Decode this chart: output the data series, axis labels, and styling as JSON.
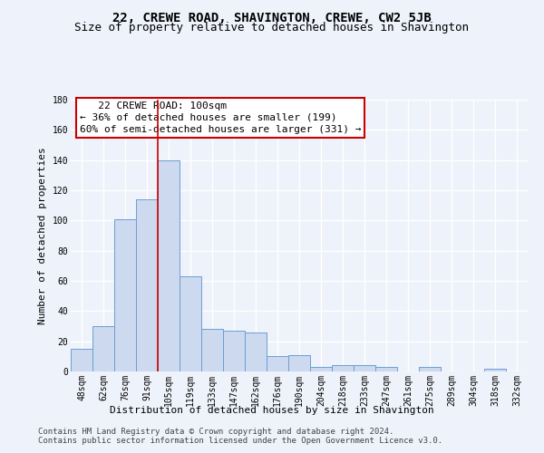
{
  "title": "22, CREWE ROAD, SHAVINGTON, CREWE, CW2 5JB",
  "subtitle": "Size of property relative to detached houses in Shavington",
  "xlabel": "Distribution of detached houses by size in Shavington",
  "ylabel": "Number of detached properties",
  "bar_color": "#ccd9ee",
  "bar_edge_color": "#6b9fd4",
  "categories": [
    "48sqm",
    "62sqm",
    "76sqm",
    "91sqm",
    "105sqm",
    "119sqm",
    "133sqm",
    "147sqm",
    "162sqm",
    "176sqm",
    "190sqm",
    "204sqm",
    "218sqm",
    "233sqm",
    "247sqm",
    "261sqm",
    "275sqm",
    "289sqm",
    "304sqm",
    "318sqm",
    "332sqm"
  ],
  "values": [
    15,
    30,
    101,
    114,
    140,
    63,
    28,
    27,
    26,
    10,
    11,
    3,
    4,
    4,
    3,
    0,
    3,
    0,
    0,
    2,
    0
  ],
  "annotation_line1": "   22 CREWE ROAD: 100sqm",
  "annotation_line2": "← 36% of detached houses are smaller (199)",
  "annotation_line3": "60% of semi-detached houses are larger (331) →",
  "vline_index": 4,
  "vline_color": "#cc0000",
  "ylim": [
    0,
    180
  ],
  "yticks": [
    0,
    20,
    40,
    60,
    80,
    100,
    120,
    140,
    160,
    180
  ],
  "footer1": "Contains HM Land Registry data © Crown copyright and database right 2024.",
  "footer2": "Contains public sector information licensed under the Open Government Licence v3.0.",
  "background_color": "#eef2fa",
  "grid_color": "#ffffff",
  "title_fontsize": 10,
  "subtitle_fontsize": 9,
  "axis_label_fontsize": 8,
  "tick_fontsize": 7,
  "annotation_fontsize": 8,
  "footer_fontsize": 6.5
}
